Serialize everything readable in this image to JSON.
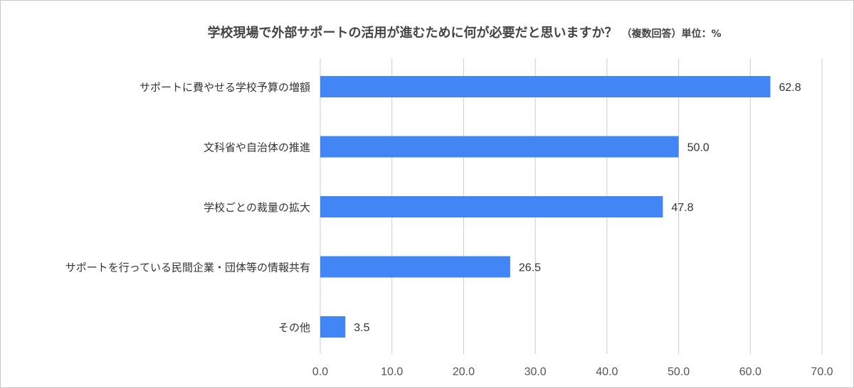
{
  "chart_data": {
    "type": "bar",
    "orientation": "horizontal",
    "title": "学校現場で外部サポートの活用が進むために何が必要だと思いますか？",
    "subtitle": "（複数回答）単位：%",
    "categories": [
      "サポートに費やせる学校予算の増額",
      "文科省や自治体の推進",
      "学校ごとの裁量の拡大",
      "サポートを行っている民間企業・団体等の情報共有",
      "その他"
    ],
    "values": [
      62.8,
      50.0,
      47.8,
      26.5,
      3.5
    ],
    "value_labels": [
      "62.8",
      "50.0",
      "47.8",
      "26.5",
      "3.5"
    ],
    "xlim": [
      0,
      70
    ],
    "x_ticks": [
      "0.0",
      "10.0",
      "20.0",
      "30.0",
      "40.0",
      "50.0",
      "60.0",
      "70.0"
    ],
    "grid": "vertical",
    "legend": "none",
    "bar_color": "#4285f4",
    "grid_color": "#cccccc"
  }
}
